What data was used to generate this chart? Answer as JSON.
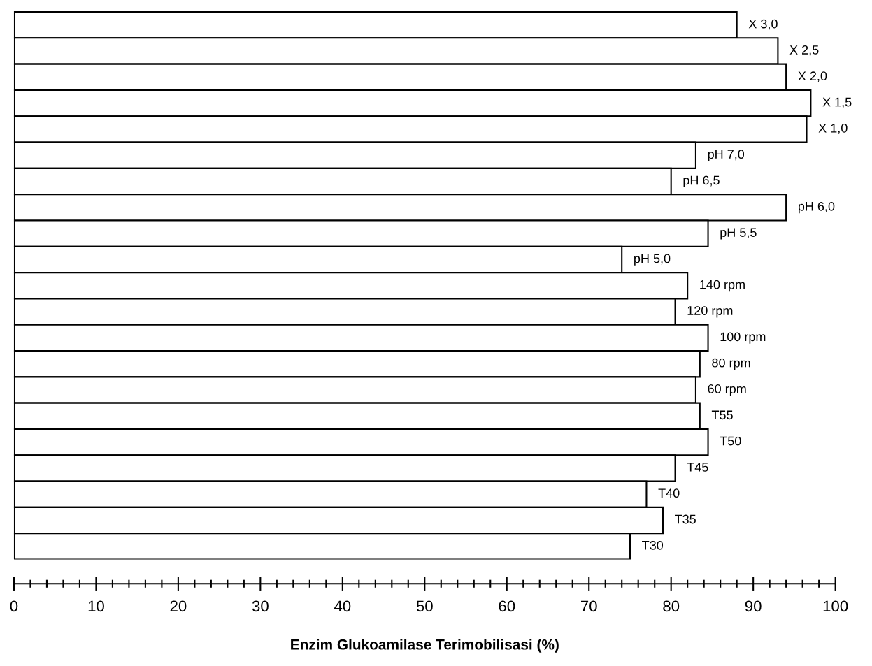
{
  "chart_data": {
    "type": "bar",
    "orientation": "horizontal",
    "xlabel": "Enzim Glukoamilase Terimobilisasi (%)",
    "categories": [
      "X 3,0",
      "X 2,5",
      "X 2,0",
      "X 1,5",
      "X 1,0",
      "pH 7,0",
      "pH 6,5",
      "pH 6,0",
      "pH 5,5",
      "pH 5,0",
      "140 rpm",
      "120 rpm",
      "100 rpm",
      "80 rpm",
      "60 rpm",
      "T55",
      "T50",
      "T45",
      "T40",
      "T35",
      "T30"
    ],
    "values": [
      88,
      93,
      94,
      97,
      96.5,
      83,
      80,
      94,
      84.5,
      74,
      82,
      80.5,
      84.5,
      83.5,
      83,
      83.5,
      84.5,
      80.5,
      77,
      79,
      75
    ],
    "color": "#ffffff",
    "tick_labels": "x",
    "grid": false,
    "xlim": [
      0,
      100
    ],
    "xticks": [
      0,
      10,
      20,
      30,
      40,
      50,
      60,
      70,
      80,
      90,
      100
    ]
  }
}
